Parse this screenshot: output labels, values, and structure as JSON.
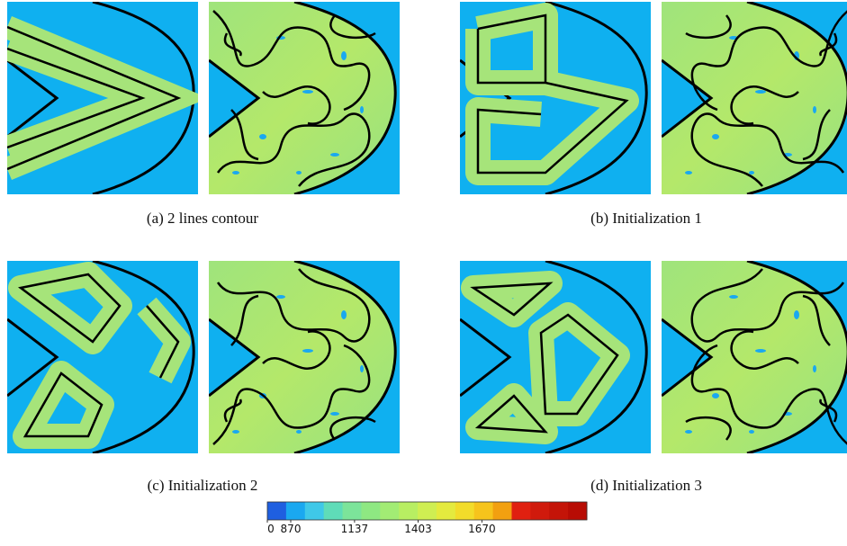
{
  "figure": {
    "captions": [
      "(a) 2 lines contour",
      "(b) Initialization 1",
      "(c) Initialization 2",
      "(d) Initialization 3"
    ],
    "colorbar": {
      "ticks": [
        0,
        870,
        1137,
        1403,
        1670
      ],
      "colors": [
        "#1f5fe0",
        "#1aa8f0",
        "#3fc8e8",
        "#5fdcb8",
        "#7ce49a",
        "#8ee882",
        "#a2ec74",
        "#b8ee62",
        "#cfee52",
        "#e4ea3e",
        "#f2dc2a",
        "#f6c41c",
        "#f2a010",
        "#e02010",
        "#d01a0c",
        "#c41408",
        "#b80c04"
      ]
    }
  }
}
